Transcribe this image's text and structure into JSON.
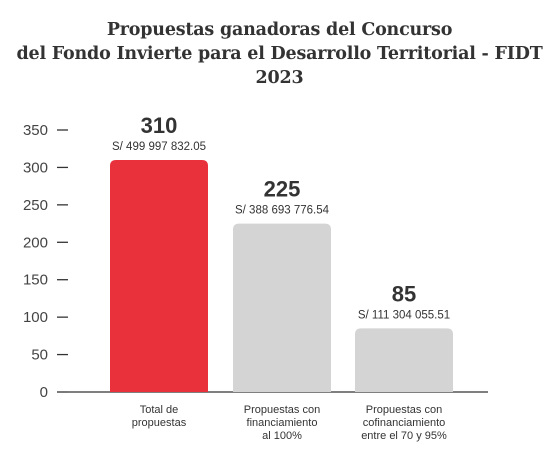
{
  "chart_data": {
    "type": "bar",
    "title_lines": [
      "Propuestas ganadoras del Concurso",
      "del Fondo Invierte para el Desarrollo Territorial - FIDT 2023"
    ],
    "categories": [
      [
        "Total de",
        "propuestas"
      ],
      [
        "Propuestas con",
        "financiamiento",
        "al 100%"
      ],
      [
        "Propuestas con",
        "cofinanciamiento",
        "entre el 70 y 95%"
      ]
    ],
    "values": [
      310,
      225,
      85
    ],
    "value_labels": [
      "310",
      "225",
      "85"
    ],
    "amount_labels": [
      "S/ 499 997 832.05",
      "S/ 388 693 776.54",
      "S/ 111 304 055.51"
    ],
    "bar_colors": [
      "#e8313b",
      "#d4d4d4",
      "#d4d4d4"
    ],
    "ylim": [
      0,
      350
    ],
    "yticks": [
      "0",
      "50",
      "100",
      "150",
      "200",
      "250",
      "300",
      "350"
    ],
    "grid": false,
    "legend": "none"
  }
}
